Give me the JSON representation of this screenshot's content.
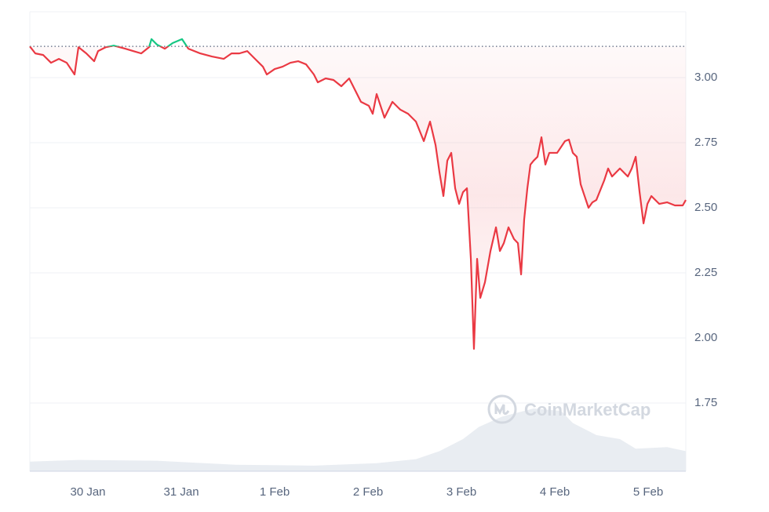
{
  "chart_data": {
    "type": "line",
    "x": [
      -0.622,
      -0.563,
      -0.479,
      -0.395,
      -0.311,
      -0.227,
      -0.143,
      -0.101,
      -0.017,
      0.067,
      0.109,
      0.193,
      0.277,
      0.403,
      0.487,
      0.571,
      0.655,
      0.681,
      0.739,
      0.824,
      0.908,
      1.008,
      1.076,
      1.202,
      1.328,
      1.454,
      1.538,
      1.622,
      1.706,
      1.79,
      1.874,
      1.916,
      2.0,
      2.084,
      2.168,
      2.252,
      2.336,
      2.42,
      2.462,
      2.546,
      2.63,
      2.714,
      2.798,
      2.882,
      2.924,
      3.008,
      3.05,
      3.092,
      3.176,
      3.261,
      3.345,
      3.429,
      3.513,
      3.597,
      3.664,
      3.723,
      3.765,
      3.807,
      3.849,
      3.891,
      3.933,
      3.975,
      4.017,
      4.059,
      4.101,
      4.134,
      4.168,
      4.202,
      4.252,
      4.311,
      4.37,
      4.412,
      4.454,
      4.504,
      4.563,
      4.605,
      4.639,
      4.672,
      4.706,
      4.739,
      4.773,
      4.815,
      4.857,
      4.899,
      4.941,
      5.025,
      5.109,
      5.151,
      5.193,
      5.235,
      5.277,
      5.319,
      5.361,
      5.403,
      5.445,
      5.529,
      5.571,
      5.613,
      5.697,
      5.782,
      5.824,
      5.866,
      5.908,
      5.95,
      5.992,
      6.034,
      6.118,
      6.202,
      6.286,
      6.37,
      6.403
    ],
    "values": [
      3.12,
      3.093,
      3.087,
      3.057,
      3.072,
      3.057,
      3.012,
      3.117,
      3.093,
      3.063,
      3.102,
      3.117,
      3.123,
      3.111,
      3.102,
      3.093,
      3.117,
      3.148,
      3.127,
      3.111,
      3.133,
      3.148,
      3.111,
      3.093,
      3.081,
      3.072,
      3.093,
      3.093,
      3.102,
      3.072,
      3.042,
      3.012,
      3.033,
      3.042,
      3.057,
      3.063,
      3.051,
      3.012,
      2.982,
      2.997,
      2.991,
      2.967,
      2.997,
      2.937,
      2.907,
      2.892,
      2.861,
      2.937,
      2.846,
      2.907,
      2.877,
      2.861,
      2.831,
      2.756,
      2.831,
      2.741,
      2.636,
      2.545,
      2.681,
      2.711,
      2.575,
      2.515,
      2.56,
      2.575,
      2.304,
      1.958,
      2.304,
      2.154,
      2.214,
      2.334,
      2.425,
      2.334,
      2.364,
      2.425,
      2.38,
      2.364,
      2.244,
      2.455,
      2.575,
      2.666,
      2.681,
      2.696,
      2.771,
      2.666,
      2.711,
      2.711,
      2.756,
      2.762,
      2.711,
      2.696,
      2.59,
      2.545,
      2.5,
      2.521,
      2.53,
      2.605,
      2.651,
      2.62,
      2.651,
      2.62,
      2.651,
      2.696,
      2.56,
      2.44,
      2.515,
      2.545,
      2.515,
      2.521,
      2.509,
      2.509,
      2.53
    ],
    "baseline": 3.12,
    "color_up": "#16c784",
    "color_down": "#ea3943",
    "volume": {
      "x": [
        -0.622,
        -0.101,
        0.739,
        1.58,
        2.42,
        3.092,
        3.513,
        3.765,
        4.017,
        4.185,
        4.437,
        4.773,
        5.067,
        5.193,
        5.445,
        5.697,
        5.866,
        6.202,
        6.403
      ],
      "values": [
        12,
        14,
        13,
        8,
        7,
        10,
        15,
        25,
        40,
        55,
        68,
        78,
        75,
        60,
        45,
        40,
        28,
        30,
        25
      ],
      "color": "#e9edf2"
    },
    "xlim": [
      -0.622,
      6.403
    ],
    "xticks": [
      {
        "value": 0,
        "label": "30 Jan"
      },
      {
        "value": 1,
        "label": "31 Jan"
      },
      {
        "value": 2,
        "label": "1 Feb"
      },
      {
        "value": 3,
        "label": "2 Feb"
      },
      {
        "value": 4,
        "label": "3 Feb"
      },
      {
        "value": 5,
        "label": "4 Feb"
      },
      {
        "value": 6,
        "label": "5 Feb"
      }
    ],
    "ylim": [
      1.488,
      3.253
    ],
    "yticks": [
      {
        "value": 1.75,
        "label": "1.75"
      },
      {
        "value": 2,
        "label": "2.00"
      },
      {
        "value": 2.25,
        "label": "2.25"
      },
      {
        "value": 2.5,
        "label": "2.50"
      },
      {
        "value": 2.75,
        "label": "2.75"
      },
      {
        "value": 3,
        "label": "3.00"
      }
    ],
    "grid": true,
    "watermark": "CoinMarketCap"
  }
}
